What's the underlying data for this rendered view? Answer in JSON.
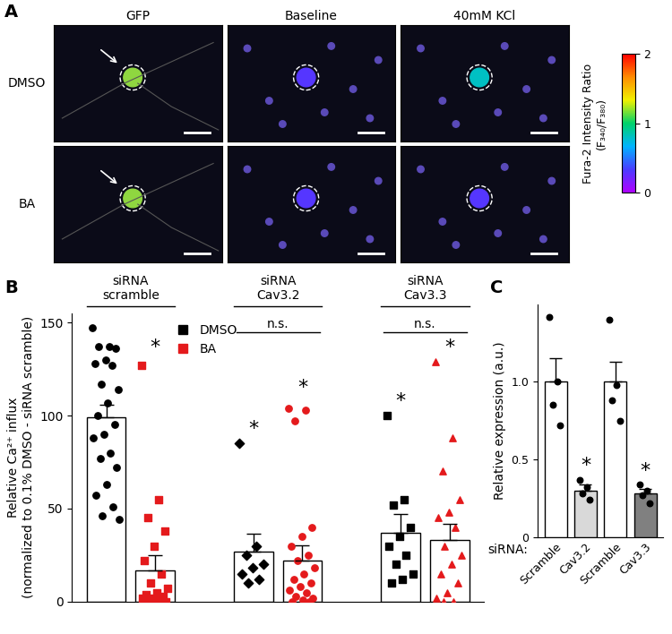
{
  "chart_data": [
    {
      "type": "image",
      "panel": "A",
      "columns": [
        "GFP",
        "Baseline",
        "40mM KCl"
      ],
      "rows": [
        "DMSO",
        "BA"
      ],
      "cell_ratio": [
        [
          null,
          0.3,
          0.8
        ],
        [
          null,
          0.3,
          0.3
        ]
      ],
      "colorbar": {
        "label": "Fura-2 Intensity Ratio\n(F₃₄₀/F₃₈₀)",
        "range": [
          0,
          2
        ],
        "ticks": [
          0,
          1,
          2
        ]
      }
    },
    {
      "type": "bar",
      "panel": "B",
      "categories": [
        null,
        null,
        null,
        null,
        null,
        null,
        null,
        null
      ],
      "y_label": "Relative Ca²⁺ influx\n(normalized to 0.1% DMSO - siRNA scramble)",
      "series": [
        {
          "name": "DMSO",
          "color": "#000000",
          "values": [
            99,
            null,
            null,
            27,
            null,
            null,
            37,
            null
          ],
          "errors": [
            7,
            null,
            null,
            9.5,
            null,
            null,
            10,
            null
          ],
          "points": [
            [
              147,
              137,
              137,
              136,
              130,
              128,
              127,
              117,
              114,
              107,
              100,
              95,
              90,
              88,
              80,
              77,
              72,
              63,
              57,
              51,
              46,
              44
            ],
            null,
            null,
            [
              85,
              30,
              25,
              20,
              18,
              15,
              12,
              10
            ],
            null,
            null,
            [
              100,
              55,
              52,
              40,
              35,
              30,
              25,
              20,
              15,
              12,
              10
            ],
            null
          ]
        },
        {
          "name": "BA",
          "color": "#e41a1c",
          "values": [
            null,
            17,
            null,
            null,
            22,
            null,
            null,
            33
          ],
          "errors": [
            null,
            8,
            null,
            null,
            8.5,
            null,
            null,
            9
          ],
          "points": [
            null,
            [
              127,
              55,
              45,
              38,
              30,
              22,
              15,
              10,
              7,
              5,
              4,
              3,
              2,
              2,
              1,
              1,
              0,
              0,
              0,
              0
            ],
            null,
            null,
            [
              104,
              103,
              97,
              40,
              35,
              30,
              25,
              22,
              18,
              15,
              12,
              10,
              8,
              6,
              5,
              3,
              2,
              1,
              0,
              0
            ],
            null,
            null,
            [
              129,
              88,
              70,
              55,
              48,
              45,
              40,
              30,
              25,
              20,
              15,
              10,
              5,
              2,
              0,
              0
            ]
          ]
        }
      ],
      "groups": [
        {
          "label": "siRNA\nscramble",
          "from": 0,
          "to": 1
        },
        {
          "label": "siRNA\nCav3.2",
          "from": 3,
          "to": 4
        },
        {
          "label": "siRNA\nCav3.3",
          "from": 6,
          "to": 7
        }
      ],
      "brackets": [
        {
          "text": "n.s.",
          "from": 3,
          "to": 4,
          "y": 145
        },
        {
          "text": "n.s.",
          "from": 6,
          "to": 7,
          "y": 145
        }
      ],
      "annotations": [
        {
          "text": "*",
          "x": 1,
          "y": 132
        },
        {
          "text": "*",
          "x": 3,
          "y": 88
        },
        {
          "text": "*",
          "x": 4,
          "y": 110
        },
        {
          "text": "*",
          "x": 6,
          "y": 103
        },
        {
          "text": "*",
          "x": 7,
          "y": 132
        }
      ],
      "ylim": [
        0,
        155
      ],
      "yticks": [
        0,
        50,
        100,
        150
      ],
      "legend": "upper center",
      "tick_labels": "y"
    },
    {
      "type": "bar",
      "panel": "C",
      "categories": [
        "Scramble",
        "Cav3.2",
        "Scramble",
        "Cav3.3"
      ],
      "x_label": "siRNA:",
      "y_label": "Relative expression (a.u.)",
      "values": [
        1.0,
        0.3,
        1.0,
        0.28
      ],
      "errors": [
        0.15,
        0.04,
        0.13,
        0.03
      ],
      "colors": [
        "#ffffff",
        "#d9d9d9",
        "#ffffff",
        "#808080"
      ],
      "points": [
        [
          1.42,
          1.0,
          0.85,
          0.72
        ],
        [
          0.37,
          0.32,
          0.28,
          0.24
        ],
        [
          1.4,
          0.98,
          0.88,
          0.75
        ],
        [
          0.34,
          0.3,
          0.27,
          0.22
        ]
      ],
      "annotations": [
        {
          "text": "*",
          "x": 1,
          "y": 0.4
        },
        {
          "text": "*",
          "x": 3,
          "y": 0.37
        }
      ],
      "ylim": [
        0,
        1.5
      ],
      "yticks": [
        0,
        0.5,
        {
          "value": 1,
          "label": "1.0"
        }
      ]
    }
  ]
}
